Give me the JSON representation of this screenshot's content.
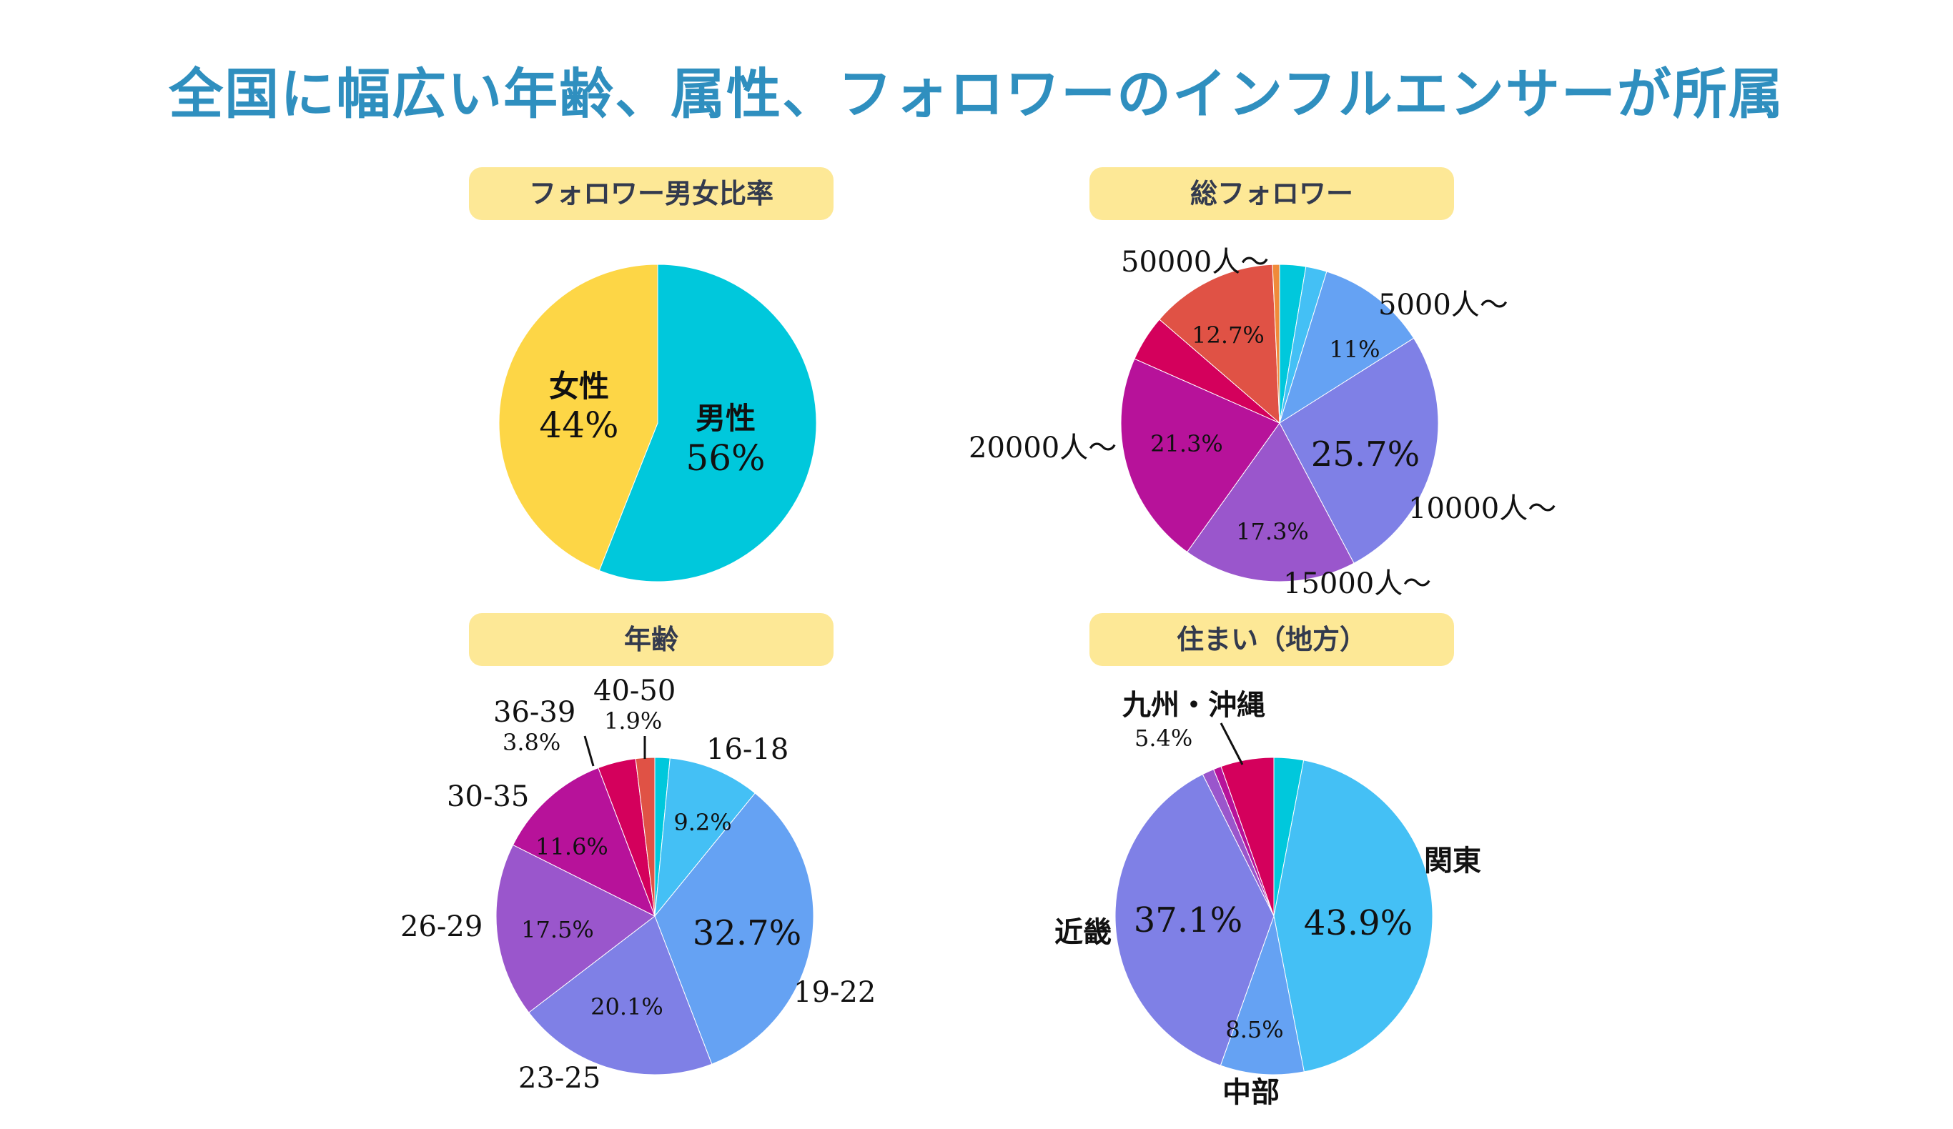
{
  "title": "全国に幅広い年齢、属性、フォロワーのインフルエンサーが所属",
  "chart_data": [
    {
      "id": "gender",
      "type": "pie",
      "title": "フォロワー男女比率",
      "slices": [
        {
          "name": "男性",
          "value": 56,
          "label": "56%",
          "color": "#00c8dc"
        },
        {
          "name": "女性",
          "value": 44,
          "label": "44%",
          "color": "#fdd646"
        }
      ]
    },
    {
      "id": "followers",
      "type": "pie",
      "title": "総フォロワー",
      "slices": [
        {
          "name": "",
          "value": 2.6,
          "label": "",
          "color": "#00c8dc"
        },
        {
          "name": "",
          "value": 2.1,
          "label": "",
          "color": "#44c0f5"
        },
        {
          "name": "5000人〜",
          "value": 11,
          "label": "11%",
          "color": "#65a2f3"
        },
        {
          "name": "10000人〜",
          "value": 25.7,
          "label": "25.7%",
          "color": "#7f80e6"
        },
        {
          "name": "15000人〜",
          "value": 17.3,
          "label": "17.3%",
          "color": "#9a56cc"
        },
        {
          "name": "20000人〜",
          "value": 21.3,
          "label": "21.3%",
          "color": "#b7129a"
        },
        {
          "name": "",
          "value": 4.6,
          "label": "",
          "color": "#d4005c"
        },
        {
          "name": "50000人〜",
          "value": 12.7,
          "label": "12.7%",
          "color": "#e05245"
        },
        {
          "name": "",
          "value": 0.7,
          "label": "",
          "color": "#f08a3a"
        }
      ]
    },
    {
      "id": "age",
      "type": "pie",
      "title": "年齢",
      "slices": [
        {
          "name": "",
          "value": 1.5,
          "label": "",
          "color": "#00c8dc"
        },
        {
          "name": "16-18",
          "value": 9.2,
          "label": "9.2%",
          "color": "#44c0f5"
        },
        {
          "name": "19-22",
          "value": 32.7,
          "label": "32.7%",
          "color": "#65a2f3"
        },
        {
          "name": "23-25",
          "value": 20.1,
          "label": "20.1%",
          "color": "#7f80e6"
        },
        {
          "name": "26-29",
          "value": 17.5,
          "label": "17.5%",
          "color": "#9a56cc"
        },
        {
          "name": "30-35",
          "value": 11.6,
          "label": "11.6%",
          "color": "#b7129a"
        },
        {
          "name": "36-39",
          "value": 3.8,
          "label": "3.8%",
          "color": "#d4005c"
        },
        {
          "name": "40-50",
          "value": 1.9,
          "label": "1.9%",
          "color": "#e05245"
        }
      ]
    },
    {
      "id": "region",
      "type": "pie",
      "title": "住まい（地方）",
      "slices": [
        {
          "name": "",
          "value": 3.0,
          "label": "",
          "color": "#00c8dc"
        },
        {
          "name": "関東",
          "value": 43.9,
          "label": "43.9%",
          "color": "#44c0f5"
        },
        {
          "name": "中部",
          "value": 8.5,
          "label": "8.5%",
          "color": "#65a2f3"
        },
        {
          "name": "近畿",
          "value": 37.1,
          "label": "37.1%",
          "color": "#7f80e6"
        },
        {
          "name": "",
          "value": 1.2,
          "label": "",
          "color": "#9a56cc"
        },
        {
          "name": "",
          "value": 0.8,
          "label": "",
          "color": "#b7129a"
        },
        {
          "name": "九州・沖縄",
          "value": 5.4,
          "label": "5.4%",
          "color": "#d4005c"
        }
      ]
    }
  ]
}
